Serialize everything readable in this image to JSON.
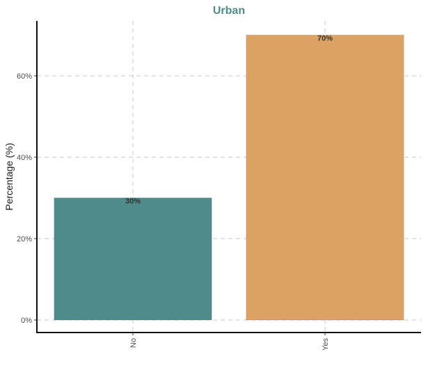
{
  "chart_data": {
    "type": "bar",
    "title": "Urban",
    "xlabel": "",
    "ylabel": "Percentage (%)",
    "categories": [
      "No",
      "Yes"
    ],
    "values": [
      30,
      70
    ],
    "data_labels": [
      "30%",
      "70%"
    ],
    "ylim": [
      0,
      73.5
    ],
    "yticks": [
      0,
      20,
      40,
      60
    ],
    "ytick_labels": [
      "0%",
      "20%",
      "40%",
      "60%"
    ],
    "grid": true,
    "legend": "none",
    "colors": {
      "title": "#4e8d8a",
      "bars": [
        "#4e8b8a",
        "#dba264"
      ]
    }
  }
}
